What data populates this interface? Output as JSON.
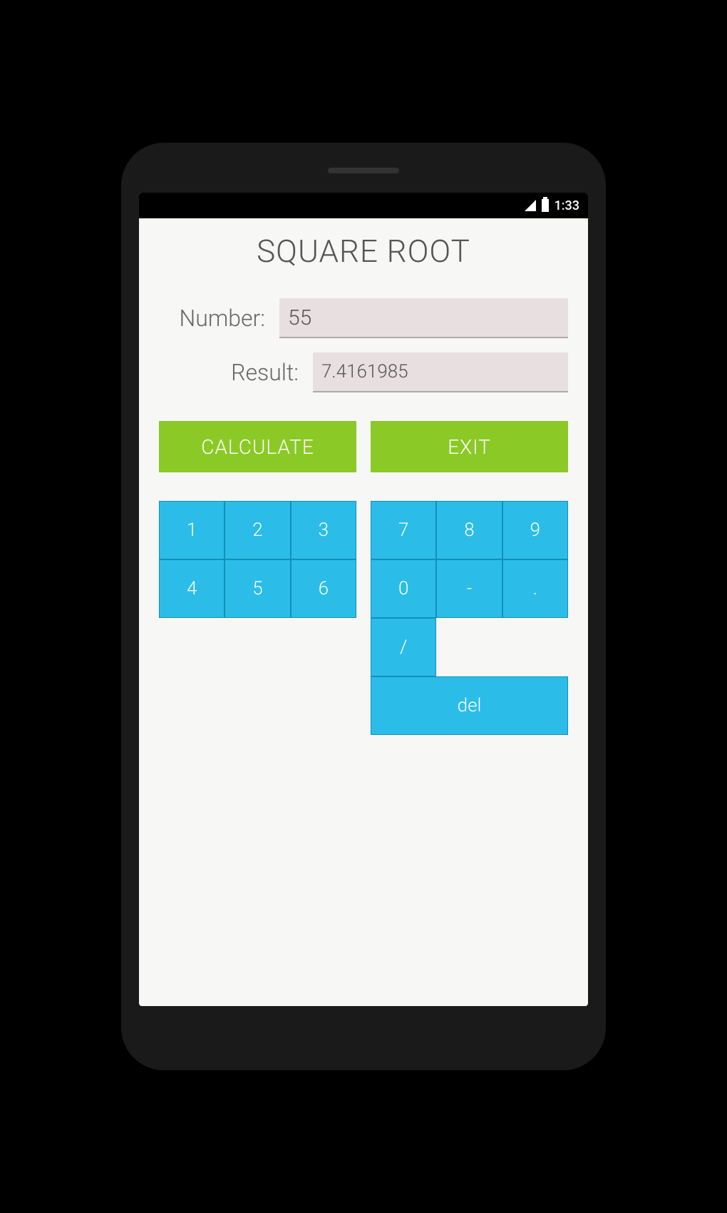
{
  "status_bar": {
    "time": "1:33",
    "background_color": "#000000",
    "text_color": "#ffffff"
  },
  "app": {
    "title": "SQUARE ROOT",
    "background_color": "#f7f7f5"
  },
  "inputs": {
    "number_label": "Number:",
    "number_value": "55",
    "result_label": "Result:",
    "result_value": "7.4161985",
    "field_background": "#e8e0e0",
    "label_color": "#666666"
  },
  "buttons": {
    "calculate_label": "CALCULATE",
    "exit_label": "EXIT",
    "button_color": "#8bc926",
    "button_text_color": "#ffffff"
  },
  "keypad": {
    "left_keys": [
      [
        "1",
        "2",
        "3"
      ],
      [
        "4",
        "5",
        "6"
      ]
    ],
    "right_keys": [
      [
        "7",
        "8",
        "9"
      ],
      [
        "0",
        "-",
        "."
      ]
    ],
    "right_bottom": {
      "slash": "/",
      "del": "del"
    },
    "key_color": "#2bbde8",
    "key_border_color": "#1090b8",
    "key_text_color": "#ffffff"
  }
}
